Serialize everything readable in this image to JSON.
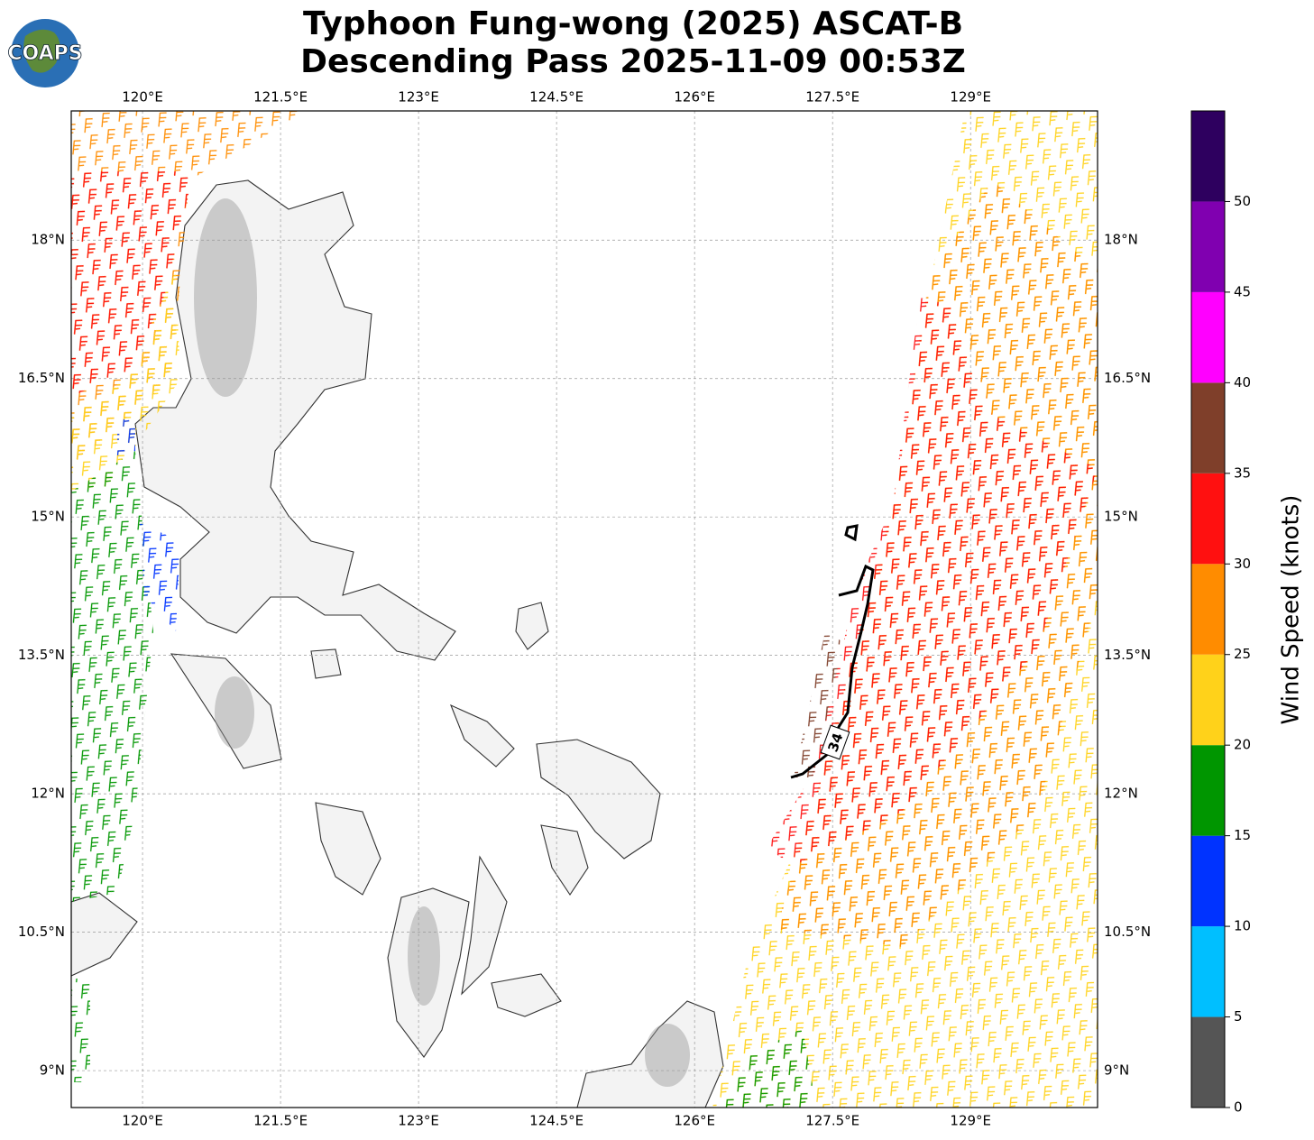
{
  "chart_data": {
    "type": "map",
    "title": "Typhoon Fung-wong (2025) ASCAT-B",
    "subtitle": "Descending Pass 2025-11-09 00:53Z",
    "logo": "COAPS",
    "xlim": [
      119.225,
      130.38
    ],
    "ylim": [
      8.6,
      19.4
    ],
    "xticks": [
      {
        "value": 120,
        "label": "120°E"
      },
      {
        "value": 121.5,
        "label": "121.5°E"
      },
      {
        "value": 123,
        "label": "123°E"
      },
      {
        "value": 124.5,
        "label": "124.5°E"
      },
      {
        "value": 126,
        "label": "126°E"
      },
      {
        "value": 127.5,
        "label": "127.5°E"
      },
      {
        "value": 129,
        "label": "129°E"
      }
    ],
    "yticks": [
      {
        "value": 9,
        "label": "9°N"
      },
      {
        "value": 10.5,
        "label": "10.5°N"
      },
      {
        "value": 12,
        "label": "12°N"
      },
      {
        "value": 13.5,
        "label": "13.5°N"
      },
      {
        "value": 15,
        "label": "15°N"
      },
      {
        "value": 16.5,
        "label": "16.5°N"
      },
      {
        "value": 18,
        "label": "18°N"
      }
    ],
    "grid": true,
    "contour_label": "34",
    "colorbar": {
      "label": "Wind Speed (knots)",
      "bounds": [
        0,
        5,
        10,
        15,
        20,
        25,
        30,
        35,
        40,
        45,
        50,
        55
      ],
      "colors": [
        "#555555",
        "#00bfff",
        "#0033ff",
        "#009600",
        "#ffd21a",
        "#ff8c00",
        "#ff1010",
        "#7f3f2a",
        "#ff00ff",
        "#8000b0",
        "#2e005f"
      ],
      "ticks": [
        0,
        5,
        10,
        15,
        20,
        25,
        30,
        35,
        40,
        45,
        50
      ]
    }
  }
}
